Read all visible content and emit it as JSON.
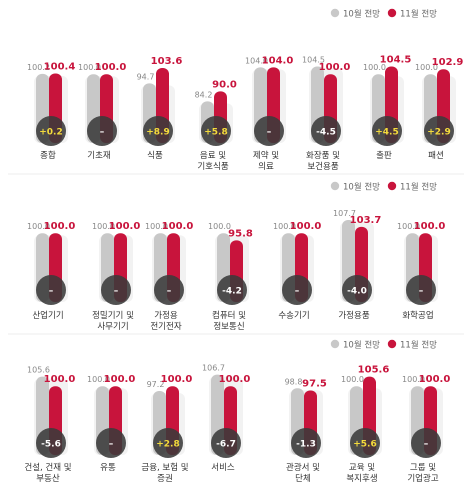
{
  "legend": {
    "prev": "10월 전망",
    "curr": "11월 전망"
  },
  "colors": {
    "prev": "#c8c8c8",
    "curr": "#c8143c",
    "prevLabel": "#888888",
    "currLabel": "#c8143c",
    "circle": "#3a3a3a",
    "plus": "#f4dc3c",
    "minus": "#ffffff"
  },
  "chart_data": [
    {
      "type": "bar",
      "title": "",
      "categories": [
        "종합",
        "기초재",
        "식품",
        "음료 및\n기호식품",
        "제약 및\n의료",
        "화장품 및\n보건용품",
        "출판",
        "패션"
      ],
      "series": [
        {
          "name": "10월 전망",
          "values": [
            100.2,
            100.0,
            94.7,
            84.2,
            104.0,
            104.5,
            100.0,
            100.0
          ]
        },
        {
          "name": "11월 전망",
          "values": [
            100.4,
            100.0,
            103.6,
            90.0,
            104.0,
            100.0,
            104.5,
            102.9
          ]
        }
      ],
      "diff": [
        "+0.2",
        "–",
        "+8.9",
        "+5.8",
        "–",
        "-4.5",
        "+4.5",
        "+2.9"
      ],
      "legend_position": "top-right"
    },
    {
      "type": "bar",
      "title": "",
      "categories": [
        "산업기기",
        "정밀기기 및\n사무기기",
        "가정용\n전기전자",
        "컴퓨터 및\n정보통신",
        "수송기기",
        "가정용품",
        "화학공업"
      ],
      "series": [
        {
          "name": "10월 전망",
          "values": [
            100.0,
            100.0,
            100.0,
            100.0,
            100.0,
            107.7,
            100.0
          ]
        },
        {
          "name": "11월 전망",
          "values": [
            100.0,
            100.0,
            100.0,
            95.8,
            100.0,
            103.7,
            100.0
          ]
        }
      ],
      "diff": [
        "–",
        "–",
        "–",
        "-4.2",
        "–",
        "-4.0",
        "–"
      ],
      "legend_position": "top-right"
    },
    {
      "type": "bar",
      "title": "",
      "categories": [
        "건설, 건재 및\n부동산",
        "유통",
        "금융, 보험 및\n증권",
        "서비스",
        "관광서 및\n단체",
        "교육 및\n복지후생",
        "그룹 및\n기업광고"
      ],
      "series": [
        {
          "name": "10월 전망",
          "values": [
            105.6,
            100.0,
            97.2,
            106.7,
            98.8,
            100.0,
            100.0
          ]
        },
        {
          "name": "11월 전망",
          "values": [
            100.0,
            100.0,
            100.0,
            100.0,
            97.5,
            105.6,
            100.0
          ]
        }
      ],
      "diff": [
        "-5.6",
        "–",
        "+2.8",
        "-6.7",
        "-1.3",
        "+5.6",
        "–"
      ],
      "legend_position": "top-right"
    }
  ]
}
